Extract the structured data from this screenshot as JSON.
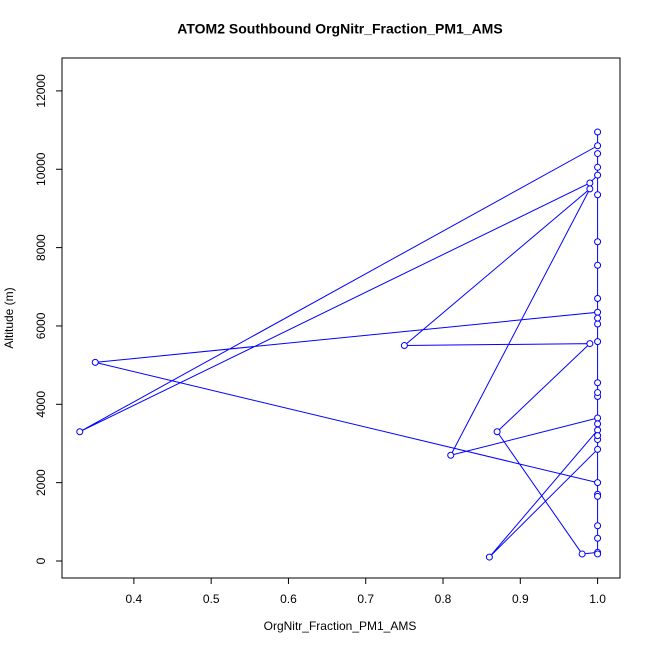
{
  "chart_data": {
    "type": "line",
    "title": "ATOM2 Southbound OrgNitr_Fraction_PM1_AMS",
    "xlabel": "OrgNitr_Fraction_PM1_AMS",
    "ylabel": "Altitude (m)",
    "x": [
      1.0,
      1.0,
      0.33,
      0.99,
      1.0,
      1.0,
      1.0,
      1.0,
      1.0,
      1.0,
      1.0,
      1.0,
      0.35,
      1.0,
      1.0,
      1.0,
      1.0,
      1.0,
      1.0,
      0.98,
      0.87,
      0.99,
      0.75,
      0.99,
      0.81,
      1.0,
      1.0,
      1.0,
      0.86,
      1.0,
      1.0,
      1.0,
      1.0,
      1.0,
      1.0,
      1.0,
      1.0,
      1.0,
      1.0
    ],
    "values": [
      10950,
      10600,
      3300,
      9650,
      9850,
      10050,
      10400,
      9350,
      8150,
      7550,
      6700,
      6350,
      5070,
      2000,
      1700,
      1650,
      900,
      580,
      220,
      180,
      3300,
      5550,
      5500,
      9500,
      2700,
      3650,
      3500,
      3340,
      100,
      2850,
      3100,
      3200,
      4200,
      4300,
      4550,
      5600,
      6050,
      6200,
      180
    ],
    "color": "#0000ff",
    "markers": true,
    "xlim": [
      0.307,
      1.029
    ],
    "xticks": [
      0.4,
      0.5,
      0.6,
      0.7,
      0.8,
      0.9,
      {
        "value": 1.0,
        "label": "1.0"
      }
    ],
    "ylim": [
      -434,
      12840
    ],
    "yticks": [
      0,
      2000,
      4000,
      6000,
      8000,
      10000,
      12000
    ]
  }
}
